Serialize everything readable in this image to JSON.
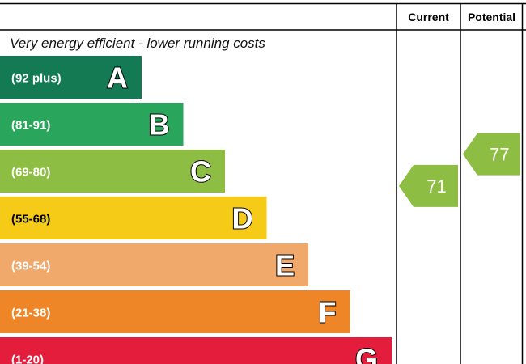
{
  "chart_data": {
    "type": "bar",
    "title": "",
    "top_label": "Very energy efficient - lower running costs",
    "column_headers": {
      "current": "Current",
      "potential": "Potential"
    },
    "bands": [
      {
        "letter": "A",
        "range": "(92 plus)",
        "color": "#137a53"
      },
      {
        "letter": "B",
        "range": "(81-91)",
        "color": "#2aa65c"
      },
      {
        "letter": "C",
        "range": "(69-80)",
        "color": "#8dbe43"
      },
      {
        "letter": "D",
        "range": "(55-68)",
        "color": "#f5cb17"
      },
      {
        "letter": "E",
        "range": "(39-54)",
        "color": "#f1a96b"
      },
      {
        "letter": "F",
        "range": "(21-38)",
        "color": "#ee8628"
      },
      {
        "letter": "G",
        "range": "(1-20)",
        "color": "#e31d3b"
      }
    ],
    "current": {
      "value": 71,
      "band": "C",
      "color": "#8dbe43"
    },
    "potential": {
      "value": 77,
      "band": "C",
      "color": "#8dbe43"
    }
  }
}
